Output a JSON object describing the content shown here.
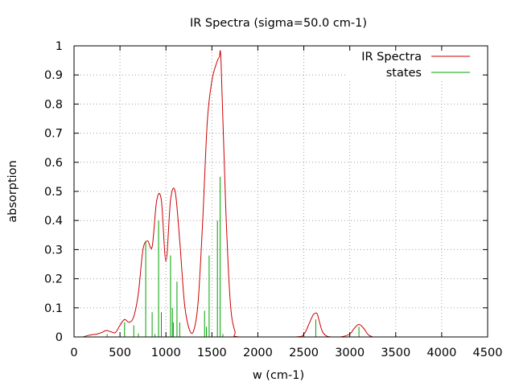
{
  "chart_data": {
    "type": "line",
    "title": "IR Spectra (sigma=50.0 cm-1)",
    "xlabel": "w (cm-1)",
    "ylabel": "absorption",
    "xlim": [
      0,
      4500
    ],
    "ylim": [
      0,
      1
    ],
    "xticks": [
      "0",
      "500",
      "1000",
      "1500",
      "2000",
      "2500",
      "3000",
      "3500",
      "4000",
      "4500"
    ],
    "yticks": [
      "0",
      "0.1",
      "0.2",
      "0.3",
      "0.4",
      "0.5",
      "0.6",
      "0.7",
      "0.8",
      "0.9",
      "1"
    ],
    "grid": true,
    "legend_position": "top-right",
    "sigma": 50,
    "series": [
      {
        "name": "IR Spectra",
        "color": "#cc0000",
        "style": "line",
        "x": [
          100,
          150,
          200,
          250,
          300,
          350,
          400,
          450,
          500,
          550,
          600,
          650,
          700,
          750,
          800,
          850,
          900,
          950,
          1000,
          1050,
          1100,
          1150,
          1200,
          1250,
          1300,
          1350,
          1400,
          1450,
          1500,
          1550,
          1580,
          1600,
          1650,
          1700,
          1750,
          1800,
          2400,
          2500,
          2550,
          2600,
          2630,
          2650,
          2700,
          2750,
          2800,
          2900,
          3000,
          3050,
          3100,
          3150,
          3200,
          3250
        ],
        "y": [
          0,
          0.005,
          0.008,
          0.01,
          0.015,
          0.022,
          0.018,
          0.015,
          0.04,
          0.06,
          0.05,
          0.07,
          0.15,
          0.3,
          0.33,
          0.31,
          0.47,
          0.47,
          0.26,
          0.47,
          0.5,
          0.33,
          0.12,
          0.03,
          0.02,
          0.12,
          0.4,
          0.74,
          0.88,
          0.94,
          0.96,
          0.94,
          0.45,
          0.12,
          0.02,
          0,
          0,
          0.01,
          0.04,
          0.075,
          0.082,
          0.075,
          0.02,
          0.003,
          0,
          0,
          0.01,
          0.03,
          0.043,
          0.03,
          0.008,
          0
        ]
      },
      {
        "name": "states",
        "color": "#00a000",
        "style": "impulses",
        "x": [
          120,
          360,
          550,
          650,
          700,
          780,
          850,
          880,
          920,
          950,
          1050,
          1070,
          1080,
          1120,
          1150,
          1420,
          1440,
          1470,
          1560,
          1590,
          1620,
          2630,
          3100
        ],
        "y": [
          0.003,
          0.01,
          0.05,
          0.04,
          0.012,
          0.33,
          0.085,
          0.01,
          0.4,
          0.085,
          0.28,
          0.1,
          0.05,
          0.19,
          0.05,
          0.09,
          0.035,
          0.28,
          0.4,
          0.55,
          0.01,
          0.06,
          0.035
        ]
      }
    ]
  }
}
